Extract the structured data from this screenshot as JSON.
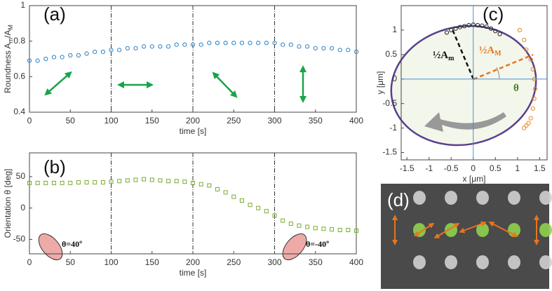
{
  "chart_data": [
    {
      "type": "scatter",
      "panel_label": "(a)",
      "xlabel": "time [s]",
      "ylabel": [
        "Roundness A",
        "m",
        "/A",
        "M"
      ],
      "xlim": [
        0,
        400
      ],
      "xticks": [
        0,
        50,
        100,
        150,
        200,
        250,
        300,
        350,
        400
      ],
      "ylim": [
        0.4,
        1
      ],
      "yticks": [
        0.4,
        0.6,
        0.8,
        1
      ],
      "vlines": [
        100,
        200,
        300
      ],
      "marker": "circle",
      "series": [
        {
          "color": "#2a7fc9",
          "x": [
            0,
            10,
            20,
            30,
            40,
            50,
            60,
            70,
            80,
            90,
            100,
            110,
            120,
            130,
            140,
            150,
            160,
            170,
            180,
            190,
            200,
            210,
            220,
            230,
            240,
            250,
            260,
            270,
            280,
            290,
            300,
            310,
            320,
            330,
            340,
            350,
            360,
            370,
            380,
            390,
            400
          ],
          "values": [
            0.69,
            0.69,
            0.7,
            0.71,
            0.71,
            0.72,
            0.72,
            0.73,
            0.74,
            0.74,
            0.75,
            0.75,
            0.76,
            0.76,
            0.77,
            0.77,
            0.77,
            0.77,
            0.78,
            0.78,
            0.78,
            0.78,
            0.79,
            0.79,
            0.79,
            0.79,
            0.79,
            0.79,
            0.79,
            0.79,
            0.79,
            0.78,
            0.78,
            0.77,
            0.77,
            0.76,
            0.76,
            0.76,
            0.75,
            0.75,
            0.74
          ]
        }
      ]
    },
    {
      "type": "scatter",
      "panel_label": "(b)",
      "xlabel": "time [s]",
      "ylabel": [
        "Orientation θ [deg]"
      ],
      "xlim": [
        0,
        400
      ],
      "xticks": [
        0,
        50,
        100,
        150,
        200,
        250,
        300,
        350,
        400
      ],
      "ylim": [
        -73,
        88
      ],
      "yticks": [
        -50,
        0,
        50
      ],
      "vlines": [
        100,
        200,
        300
      ],
      "marker": "square",
      "annotations": [
        "θ=40º",
        "θ=-40º"
      ],
      "series": [
        {
          "color": "#77ac30",
          "x": [
            0,
            10,
            20,
            30,
            40,
            50,
            60,
            70,
            80,
            90,
            100,
            110,
            120,
            130,
            140,
            150,
            160,
            170,
            180,
            190,
            200,
            210,
            220,
            230,
            240,
            250,
            260,
            270,
            280,
            290,
            300,
            310,
            320,
            330,
            340,
            350,
            360,
            370,
            380,
            390,
            400
          ],
          "values": [
            40,
            40,
            40,
            40,
            40,
            40,
            41,
            41,
            41,
            41,
            42,
            43,
            44,
            45,
            46,
            45,
            44,
            43,
            43,
            42,
            40,
            38,
            36,
            30,
            25,
            18,
            12,
            5,
            0,
            -5,
            -12,
            -20,
            -25,
            -28,
            -30,
            -32,
            -33,
            -34,
            -35,
            -35,
            -36
          ]
        }
      ]
    },
    {
      "type": "scatter",
      "panel_label": "(c)",
      "xlabel": "x [μm]",
      "ylabel": [
        "y [μm]"
      ],
      "xlim": [
        -1.63,
        1.67
      ],
      "xticks": [
        -1.5,
        -1,
        -0.5,
        0,
        0.5,
        1,
        1.5
      ],
      "ylim": [
        -1.65,
        1.5
      ],
      "yticks": [
        -1.5,
        -1,
        -0.5,
        0,
        0.5,
        1
      ],
      "zero_lines": true,
      "marker": "circle",
      "annotations": [
        [
          "½A",
          "m"
        ],
        [
          "½A",
          "M"
        ],
        [
          "θ"
        ]
      ],
      "series": [
        {
          "color": "#222222",
          "x": [
            -0.6,
            -0.5,
            -0.4,
            -0.3,
            -0.2,
            -0.1,
            0,
            0.1,
            0.2,
            0.3,
            0.4,
            0.5,
            0.6
          ],
          "values": [
            0.95,
            1.0,
            1.03,
            1.06,
            1.08,
            1.1,
            1.11,
            1.1,
            1.09,
            1.07,
            1.03,
            0.98,
            0.92
          ]
        },
        {
          "color": "#e8841f",
          "x": [
            1.05,
            1.15,
            1.2,
            1.3,
            1.35,
            1.38,
            1.4,
            1.38,
            1.35,
            1.3,
            1.25,
            1.2,
            1.15
          ],
          "values": [
            1.0,
            0.8,
            0.6,
            0.4,
            0.2,
            0,
            -0.2,
            -0.4,
            -0.6,
            -0.8,
            -0.9,
            -0.95,
            -1.0
          ]
        }
      ]
    },
    {
      "type": "image",
      "panel_label": "(d)"
    }
  ]
}
